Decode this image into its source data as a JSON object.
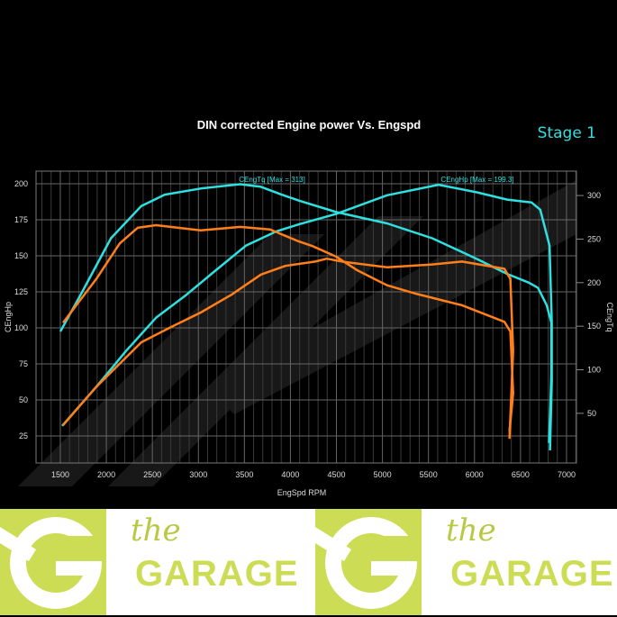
{
  "chart_data": {
    "type": "line",
    "title": "DIN corrected Engine power Vs. Engspd",
    "badge": "Stage 1",
    "xlabel": "EngSpd RPM",
    "ylabel_left": "CEngHp",
    "ylabel_right": "CEngTq",
    "xlim": [
      1236,
      7108
    ],
    "ylim_left": [
      6.25,
      208.75
    ],
    "ylim_right": [
      -7,
      328
    ],
    "x_ticks": [
      "1500",
      "2000",
      "2500",
      "3000",
      "3500",
      "4000",
      "4500",
      "5000",
      "5500",
      "6000",
      "6500",
      "7000"
    ],
    "y_left_ticks": [
      "25",
      "50",
      "75",
      "100",
      "125",
      "150",
      "175",
      "200"
    ],
    "y_right_ticks": [
      "50",
      "100",
      "150",
      "200",
      "250",
      "300"
    ],
    "grid": true,
    "annotations": {
      "torque_max": "CEngTq [Max = 313]",
      "hp_max": "CEngHp [Max = 199.3]"
    },
    "colors": {
      "stage1": "#2fe0e0",
      "stock": "#ff7f1a",
      "background": "#000000",
      "grid": "#555555"
    },
    "series": [
      {
        "name": "CEngTq",
        "axis": "right",
        "color": "#2fe0e0",
        "points": [
          [
            1500,
            144
          ],
          [
            1725,
            187
          ],
          [
            2050,
            251
          ],
          [
            2380,
            288
          ],
          [
            2635,
            301
          ],
          [
            3025,
            308
          ],
          [
            3455,
            313
          ],
          [
            3680,
            310
          ],
          [
            3905,
            301
          ],
          [
            4100,
            294
          ],
          [
            4500,
            281
          ],
          [
            5050,
            268
          ],
          [
            5540,
            251
          ],
          [
            6030,
            227
          ],
          [
            6355,
            210
          ],
          [
            6590,
            200
          ],
          [
            6690,
            194
          ],
          [
            6785,
            174
          ],
          [
            6835,
            154
          ],
          [
            6835,
            94
          ],
          [
            6810,
            16
          ]
        ]
      },
      {
        "name": "CEngHp",
        "axis": "left",
        "color": "#2fe0e0",
        "points": [
          [
            1520,
            32
          ],
          [
            1890,
            59
          ],
          [
            2215,
            84
          ],
          [
            2540,
            107
          ],
          [
            2870,
            123
          ],
          [
            3190,
            140
          ],
          [
            3515,
            157
          ],
          [
            3850,
            167
          ],
          [
            4100,
            172
          ],
          [
            4495,
            179
          ],
          [
            5050,
            192
          ],
          [
            5610,
            199.3
          ],
          [
            6030,
            194
          ],
          [
            6355,
            189
          ],
          [
            6620,
            187
          ],
          [
            6715,
            182
          ],
          [
            6815,
            157
          ],
          [
            6840,
            104
          ],
          [
            6840,
            63
          ],
          [
            6820,
            15
          ]
        ]
      },
      {
        "axis": "right",
        "color": "#ff7f1a",
        "points": [
          [
            1530,
            154
          ],
          [
            1890,
            204
          ],
          [
            2145,
            245
          ],
          [
            2340,
            263
          ],
          [
            2540,
            266
          ],
          [
            3025,
            260
          ],
          [
            3455,
            264
          ],
          [
            3780,
            261
          ],
          [
            4075,
            248
          ],
          [
            4240,
            242
          ],
          [
            4495,
            230
          ],
          [
            4730,
            214
          ],
          [
            5050,
            197
          ],
          [
            5375,
            187
          ],
          [
            5865,
            174
          ],
          [
            6325,
            155
          ],
          [
            6390,
            144
          ],
          [
            6420,
            73
          ],
          [
            6380,
            29
          ]
        ]
      },
      {
        "axis": "left",
        "color": "#ff7f1a",
        "points": [
          [
            1530,
            32.5
          ],
          [
            1890,
            59
          ],
          [
            2380,
            90
          ],
          [
            2705,
            100.6
          ],
          [
            3025,
            110.6
          ],
          [
            3360,
            123
          ],
          [
            3680,
            137
          ],
          [
            3945,
            143
          ],
          [
            4270,
            146
          ],
          [
            4395,
            148
          ],
          [
            4560,
            146
          ],
          [
            5050,
            142
          ],
          [
            5540,
            144
          ],
          [
            5865,
            146
          ],
          [
            6325,
            141
          ],
          [
            6390,
            134
          ],
          [
            6420,
            84
          ],
          [
            6380,
            23
          ]
        ]
      }
    ]
  },
  "banner": {
    "the": "the",
    "garage": "GARAGE",
    "color": "#cddc55"
  }
}
